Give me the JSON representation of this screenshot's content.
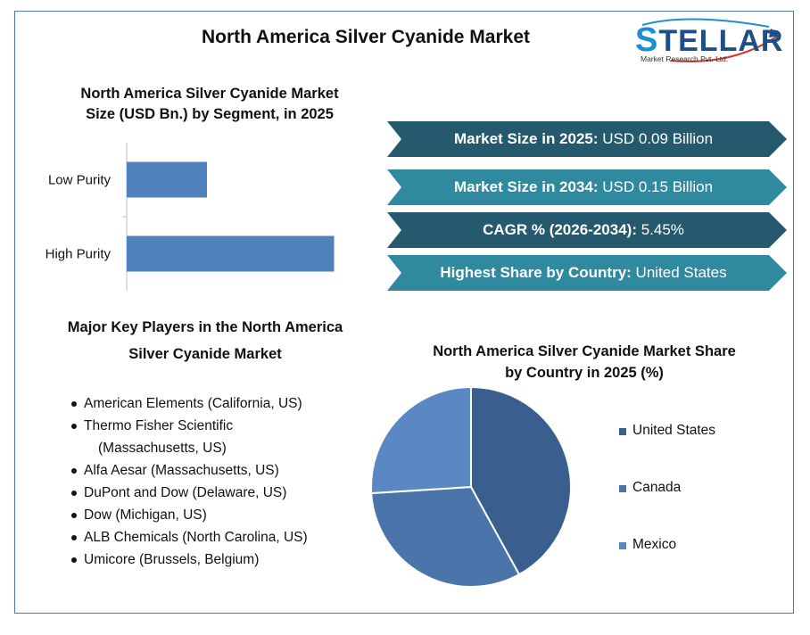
{
  "title": "North America Silver Cyanide Market",
  "logo": {
    "first_letter": "S",
    "rest": "TELLAR",
    "tagline": "Market Research Pvt. Ltd."
  },
  "bar_section": {
    "title_line1": "North America Silver Cyanide Market",
    "title_line2": "Size (USD Bn.) by Segment, in 2025"
  },
  "banners": [
    {
      "label": "Market Size in 2025:",
      "value": "USD 0.09 Billion",
      "color": "#255a6e"
    },
    {
      "label": "Market Size in 2034:",
      "value": "USD 0.15 Billion",
      "color": "#2f8aa0"
    },
    {
      "label": "CAGR % (2026-2034):",
      "value": "5.45%",
      "color": "#255a6e"
    },
    {
      "label": "Highest Share by Country:",
      "value": "United States",
      "color": "#2f8aa0"
    }
  ],
  "players": {
    "title_line1": "Major Key Players in the North America",
    "title_line2": "Silver Cyanide Market",
    "items": [
      [
        "American Elements (California, US)"
      ],
      [
        "Thermo Fisher Scientific",
        "(Massachusetts, US)"
      ],
      [
        "Alfa Aesar (Massachusetts, US)"
      ],
      [
        "DuPont and Dow (Delaware, US)"
      ],
      [
        "Dow (Michigan, US)"
      ],
      [
        "ALB Chemicals (North Carolina, US)"
      ],
      [
        "Umicore (Brussels, Belgium)"
      ]
    ]
  },
  "pie_section": {
    "title_line1": "North America Silver Cyanide Market Share",
    "title_line2": "by Country in 2025 (%)"
  },
  "chart_data": [
    {
      "type": "bar",
      "orientation": "horizontal",
      "title": "North America Silver Cyanide Market Size (USD Bn.) by Segment, in 2025",
      "categories": [
        "Low Purity",
        "High Purity"
      ],
      "values": [
        0.024,
        0.062
      ],
      "color": "#4f81bd",
      "grid": false
    },
    {
      "type": "pie",
      "title": "North America Silver Cyanide Market Share by Country in 2025 (%)",
      "labels": [
        "United States",
        "Canada",
        "Mexico"
      ],
      "values": [
        42,
        32,
        26
      ],
      "colors": [
        "#3a5f8f",
        "#4a74aa",
        "#5b88c4"
      ],
      "legend": "right"
    }
  ]
}
